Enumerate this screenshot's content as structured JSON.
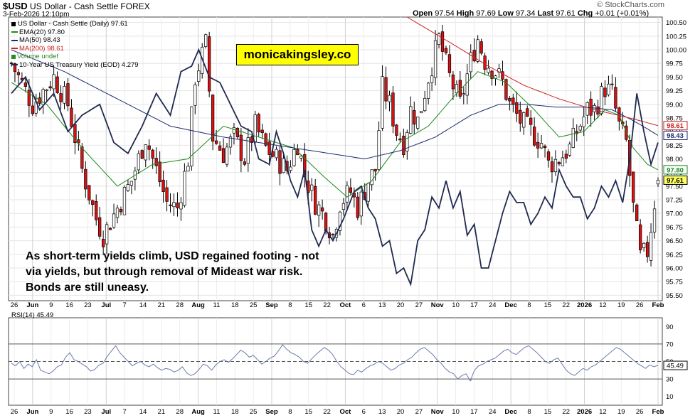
{
  "header": {
    "symbol": "$USD",
    "name": "US Dollar - Cash Settle",
    "exchange": "FOREX",
    "datetime": "3-Feb-2026 12:10pm",
    "open_label": "Open",
    "open": "97.54",
    "high_label": "High",
    "high": "97.69",
    "low_label": "Low",
    "low": "97.34",
    "last_label": "Last",
    "last": "97.61",
    "chg_label": "Chg",
    "chg": "+0.01 (+0.01%)",
    "brand": "© StockCharts.com"
  },
  "legend": [
    {
      "text": "US Dollar - Cash Settle (Daily) 97.61",
      "color": "#000000",
      "dot": true
    },
    {
      "text": "EMA(20) 97.80",
      "color": "#1a8a1a"
    },
    {
      "text": "MA(50) 98.43",
      "color": "#1f2a70"
    },
    {
      "text": "MA(200) 98.61",
      "color": "#cc2222"
    },
    {
      "text": "Volume undef",
      "color": "#2a8a2a"
    },
    {
      "text": "10-Year US Treasury Yield (EOD) 4.279",
      "color": "#1f2a50"
    }
  ],
  "watermark": "monicakingsley.co",
  "annotation": "As short-term yields climb, USD regained footing - not via yields, but through removal of Mideast war risk. Bonds are still uneasy.",
  "rsi_label": "RSI(14) 45.49",
  "colors": {
    "up": "#ffffff",
    "down": "#dd1111",
    "ema20": "#1a8a1a",
    "ma50": "#1f2a70",
    "ma200": "#cc2222",
    "yield": "#1f2a50",
    "rsi": "#6a7aaa"
  },
  "chart_data": [
    {
      "type": "candlestick",
      "title": "US Dollar - Cash Settle (Daily)",
      "ylim": [
        95.4,
        100.6
      ],
      "y_ticks": [
        "100.50",
        "100.25",
        "100.00",
        "99.75",
        "99.50",
        "99.25",
        "99.00",
        "98.75",
        "98.50",
        "98.25",
        "98.00",
        "97.75",
        "97.50",
        "97.25",
        "97.00",
        "96.75",
        "96.50",
        "96.25",
        "96.00",
        "95.75",
        "95.50"
      ],
      "x_ticks": [
        "26",
        "Jun",
        "9",
        "16",
        "23",
        "Jul",
        "7",
        "14",
        "21",
        "28",
        "Aug",
        "11",
        "18",
        "25",
        "Sep",
        "8",
        "15",
        "22",
        "Oct",
        "6",
        "13",
        "20",
        "27",
        "Nov",
        "10",
        "17",
        "24",
        "Dec",
        "8",
        "15",
        "22",
        "2026",
        "12",
        "19",
        "26",
        "Feb"
      ],
      "bold_ticks": [
        "Jun",
        "Jul",
        "Aug",
        "Sep",
        "Oct",
        "Nov",
        "Dec",
        "2026",
        "Feb"
      ],
      "price_path": [
        [
          0,
          99.75
        ],
        [
          6,
          99.0
        ],
        [
          12,
          99.5
        ],
        [
          16,
          99.0
        ],
        [
          20,
          97.8
        ],
        [
          24,
          96.9
        ],
        [
          26,
          96.6
        ],
        [
          30,
          97.1
        ],
        [
          34,
          97.6
        ],
        [
          38,
          98.4
        ],
        [
          40,
          98.0
        ],
        [
          44,
          97.2
        ],
        [
          47,
          97.1
        ],
        [
          50,
          98.0
        ],
        [
          52,
          99.5
        ],
        [
          55,
          100.1
        ],
        [
          57,
          98.4
        ],
        [
          60,
          98.1
        ],
        [
          63,
          98.4
        ],
        [
          66,
          98.0
        ],
        [
          69,
          98.6
        ],
        [
          72,
          98.2
        ],
        [
          75,
          98.0
        ],
        [
          78,
          97.8
        ],
        [
          81,
          98.3
        ],
        [
          83,
          97.7
        ],
        [
          86,
          97.2
        ],
        [
          89,
          96.9
        ],
        [
          91,
          96.6
        ],
        [
          93,
          97.2
        ],
        [
          96,
          97.4
        ],
        [
          98,
          97.1
        ],
        [
          101,
          97.6
        ],
        [
          103,
          97.8
        ],
        [
          105,
          99.3
        ],
        [
          107,
          99.0
        ],
        [
          109,
          98.5
        ],
        [
          111,
          98.3
        ],
        [
          113,
          98.9
        ],
        [
          115,
          98.7
        ],
        [
          118,
          99.5
        ],
        [
          121,
          100.2
        ],
        [
          124,
          99.5
        ],
        [
          127,
          99.0
        ],
        [
          130,
          99.8
        ],
        [
          132,
          100.2
        ],
        [
          134,
          99.8
        ],
        [
          137,
          99.6
        ],
        [
          139,
          99.4
        ],
        [
          141,
          99.0
        ],
        [
          144,
          98.7
        ],
        [
          147,
          98.5
        ],
        [
          150,
          98.3
        ],
        [
          152,
          97.9
        ],
        [
          155,
          98.0
        ],
        [
          158,
          98.2
        ],
        [
          160,
          98.5
        ],
        [
          163,
          98.9
        ],
        [
          165,
          98.9
        ],
        [
          168,
          99.3
        ],
        [
          170,
          99.2
        ],
        [
          172,
          98.6
        ],
        [
          174,
          98.3
        ],
        [
          176,
          97.1
        ],
        [
          178,
          96.2
        ],
        [
          180,
          96.3
        ],
        [
          182,
          97.2
        ],
        [
          183,
          97.61
        ]
      ],
      "last_date_index": 183,
      "series": [
        {
          "name": "EMA(20)",
          "last": 97.8,
          "path": [
            [
              0,
              99.4
            ],
            [
              10,
              99.0
            ],
            [
              20,
              98.2
            ],
            [
              30,
              97.5
            ],
            [
              40,
              97.9
            ],
            [
              50,
              98.0
            ],
            [
              60,
              98.6
            ],
            [
              70,
              98.4
            ],
            [
              80,
              98.2
            ],
            [
              88,
              97.7
            ],
            [
              95,
              97.3
            ],
            [
              102,
              97.6
            ],
            [
              110,
              98.3
            ],
            [
              118,
              98.6
            ],
            [
              126,
              99.2
            ],
            [
              132,
              99.6
            ],
            [
              140,
              99.4
            ],
            [
              148,
              98.9
            ],
            [
              155,
              98.4
            ],
            [
              162,
              98.5
            ],
            [
              168,
              98.9
            ],
            [
              172,
              98.8
            ],
            [
              176,
              98.2
            ],
            [
              180,
              97.9
            ],
            [
              183,
              97.8
            ]
          ]
        },
        {
          "name": "MA(50)",
          "last": 98.43,
          "path": [
            [
              0,
              100.0
            ],
            [
              15,
              99.6
            ],
            [
              30,
              99.1
            ],
            [
              45,
              98.6
            ],
            [
              60,
              98.4
            ],
            [
              75,
              98.25
            ],
            [
              90,
              98.1
            ],
            [
              100,
              98.0
            ],
            [
              110,
              98.15
            ],
            [
              120,
              98.4
            ],
            [
              130,
              98.8
            ],
            [
              138,
              99.0
            ],
            [
              146,
              99.0
            ],
            [
              154,
              98.95
            ],
            [
              162,
              98.95
            ],
            [
              170,
              98.9
            ],
            [
              176,
              98.7
            ],
            [
              180,
              98.55
            ],
            [
              183,
              98.43
            ]
          ]
        },
        {
          "name": "MA(200)",
          "last": 98.61,
          "path": [
            [
              112,
              100.6
            ],
            [
              125,
              100.1
            ],
            [
              135,
              99.7
            ],
            [
              145,
              99.35
            ],
            [
              155,
              99.1
            ],
            [
              165,
              98.9
            ],
            [
              175,
              98.75
            ],
            [
              183,
              98.61
            ]
          ]
        },
        {
          "name": "10-Year US Treasury Yield (EOD)",
          "last": 4.279,
          "path": [
            [
              0,
              99.2
            ],
            [
              4,
              99.5
            ],
            [
              8,
              98.9
            ],
            [
              12,
              99.2
            ],
            [
              16,
              98.5
            ],
            [
              20,
              98.8
            ],
            [
              25,
              99.0
            ],
            [
              29,
              98.3
            ],
            [
              33,
              98.1
            ],
            [
              37,
              98.6
            ],
            [
              41,
              99.2
            ],
            [
              45,
              98.8
            ],
            [
              48,
              99.6
            ],
            [
              51,
              99.7
            ],
            [
              53,
              100.0
            ],
            [
              56,
              99.5
            ],
            [
              59,
              99.4
            ],
            [
              62,
              99.0
            ],
            [
              65,
              98.6
            ],
            [
              68,
              98.5
            ],
            [
              70,
              98.0
            ],
            [
              73,
              97.9
            ],
            [
              75,
              98.5
            ],
            [
              77,
              98.1
            ],
            [
              79,
              97.6
            ],
            [
              81,
              97.3
            ],
            [
              83,
              97.8
            ],
            [
              85,
              96.7
            ],
            [
              87,
              96.4
            ],
            [
              89,
              96.7
            ],
            [
              91,
              96.5
            ],
            [
              94,
              96.9
            ],
            [
              97,
              97.4
            ],
            [
              99,
              97.5
            ],
            [
              101,
              97.1
            ],
            [
              103,
              96.9
            ],
            [
              105,
              96.4
            ],
            [
              107,
              96.5
            ],
            [
              109,
              95.9
            ],
            [
              111,
              96.0
            ],
            [
              113,
              95.7
            ],
            [
              115,
              96.5
            ],
            [
              117,
              96.7
            ],
            [
              119,
              97.3
            ],
            [
              121,
              97.1
            ],
            [
              123,
              97.6
            ],
            [
              125,
              97.1
            ],
            [
              127,
              97.4
            ],
            [
              129,
              96.6
            ],
            [
              131,
              96.8
            ],
            [
              133,
              96.0
            ],
            [
              135,
              96.0
            ],
            [
              137,
              96.5
            ],
            [
              139,
              97.0
            ],
            [
              141,
              97.4
            ],
            [
              143,
              97.2
            ],
            [
              145,
              97.2
            ],
            [
              147,
              96.8
            ],
            [
              149,
              97.0
            ],
            [
              151,
              97.3
            ],
            [
              153,
              97.1
            ],
            [
              155,
              97.8
            ],
            [
              157,
              97.5
            ],
            [
              159,
              97.3
            ],
            [
              161,
              97.3
            ],
            [
              163,
              96.9
            ],
            [
              165,
              97.1
            ],
            [
              167,
              97.5
            ],
            [
              169,
              97.3
            ],
            [
              171,
              97.6
            ],
            [
              173,
              97.2
            ],
            [
              175,
              98.0
            ],
            [
              177,
              99.2
            ],
            [
              179,
              98.5
            ],
            [
              181,
              97.9
            ],
            [
              183,
              98.3
            ]
          ]
        }
      ]
    },
    {
      "type": "line",
      "title": "RSI(14)",
      "last": 45.49,
      "ylim": [
        0,
        100
      ],
      "y_ticks": [
        90,
        70,
        50,
        30,
        10
      ],
      "reference_lines": [
        70,
        50,
        30
      ],
      "values": [
        48,
        45,
        50,
        42,
        47,
        44,
        52,
        40,
        38,
        36,
        39,
        44,
        46,
        55,
        60,
        52,
        50,
        47,
        44,
        39,
        41,
        46,
        48,
        56,
        62,
        68,
        60,
        55,
        50,
        45,
        48,
        50,
        46,
        44,
        47,
        43,
        40,
        42,
        41,
        38,
        40,
        44,
        37,
        34,
        36,
        41,
        47,
        45,
        40,
        46,
        50,
        52,
        49,
        53,
        58,
        63,
        60,
        55,
        57,
        52,
        47,
        50,
        54,
        56,
        62,
        69,
        64,
        60,
        58,
        55,
        50,
        48,
        53,
        58,
        62,
        66,
        63,
        58,
        50,
        44,
        40,
        36,
        35,
        40,
        38,
        42,
        45,
        47,
        50,
        48,
        44,
        40,
        42,
        46,
        48,
        52,
        55,
        60,
        64,
        66,
        62,
        58,
        52,
        48,
        42,
        38,
        36,
        30,
        34,
        36,
        28,
        40,
        45,
        47,
        50,
        52,
        54,
        58,
        62,
        64,
        60,
        58,
        62,
        66,
        68,
        64,
        60,
        55,
        50,
        48,
        52,
        54,
        47,
        40,
        36,
        34,
        38,
        42,
        40,
        44,
        46,
        50,
        54,
        58,
        62,
        66,
        64,
        60,
        56,
        52,
        48,
        45,
        42,
        46,
        44,
        45.49
      ]
    }
  ]
}
